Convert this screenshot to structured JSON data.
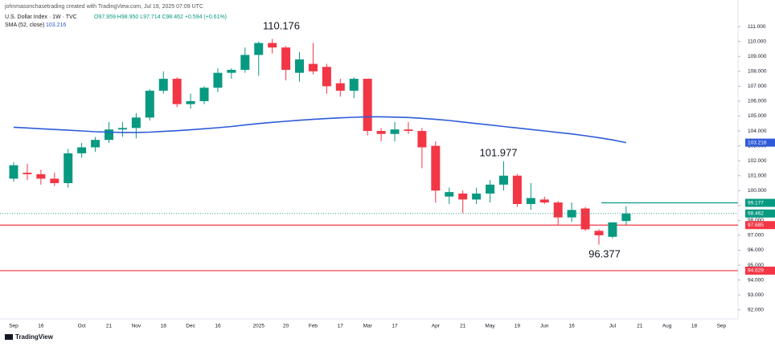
{
  "chart_data": {
    "type": "candlestick",
    "credit": "johnmasonchasetrading created with TradingView.com, Jul 19, 2025 07:09 UTC",
    "title": "U.S. Dollar Index · 1W · TVC",
    "legend_ohlc": "O97.959 H98.950 L97.714 C98.462 +0.594 (+0.61%)",
    "footer": "TradingView",
    "categories": [
      "Sep",
      null,
      "16",
      null,
      null,
      "Oct",
      null,
      "21",
      null,
      "Nov",
      null,
      "18",
      null,
      "Dec",
      null,
      "16",
      null,
      null,
      "2025",
      null,
      "20",
      null,
      "Feb",
      null,
      "17",
      null,
      "Mar",
      null,
      "17",
      null,
      null,
      "Apr",
      null,
      "21",
      null,
      "May",
      null,
      "19",
      null,
      "Jun",
      null,
      "16",
      null,
      null,
      "Jul",
      null,
      "21",
      null,
      "Aug",
      null,
      "18",
      null,
      "Sep"
    ],
    "series": [
      {
        "name": "U.S. Dollar Index · 1W · TVC",
        "up_color": "#089981",
        "down_color": "#f23645",
        "open": [
          100.8,
          101.2,
          101.1,
          100.8,
          100.5,
          102.5,
          102.9,
          103.4,
          104.1,
          104.2,
          104.9,
          106.7,
          107.5,
          105.8,
          106.0,
          106.9,
          107.9,
          108.1,
          109.1,
          109.9,
          109.6,
          107.9,
          108.5,
          108.3,
          107.2,
          106.7,
          107.5,
          104.0,
          103.8,
          104.1,
          104.0,
          103.0,
          99.6,
          99.8,
          99.4,
          99.8,
          100.4,
          101.0,
          99.1,
          99.4,
          99.2,
          98.2,
          98.8,
          97.3,
          96.9,
          97.959,
          null,
          null,
          null,
          null,
          null,
          null,
          null
        ],
        "high": [
          101.9,
          101.8,
          101.4,
          101.2,
          102.8,
          103.2,
          103.6,
          104.6,
          104.6,
          105.2,
          106.8,
          108.0,
          107.6,
          106.5,
          107.0,
          108.2,
          108.2,
          109.6,
          110.0,
          110.176,
          109.7,
          109.3,
          109.9,
          108.5,
          107.5,
          107.6,
          107.5,
          104.2,
          104.6,
          104.6,
          104.2,
          103.3,
          100.2,
          100.0,
          100.2,
          100.7,
          101.977,
          101.1,
          100.5,
          99.6,
          99.3,
          99.2,
          98.9,
          97.4,
          97.8,
          98.95,
          null,
          null,
          null,
          null,
          null,
          null,
          null
        ],
        "low": [
          100.6,
          100.7,
          100.4,
          100.3,
          100.2,
          102.2,
          102.6,
          103.2,
          103.6,
          103.5,
          104.7,
          106.5,
          105.6,
          105.5,
          105.8,
          106.6,
          107.5,
          107.9,
          107.7,
          109.2,
          107.4,
          107.3,
          107.8,
          106.5,
          106.3,
          106.2,
          103.7,
          103.3,
          103.3,
          103.8,
          101.5,
          99.2,
          99.1,
          98.5,
          99.1,
          99.2,
          100.0,
          98.9,
          98.7,
          99.1,
          97.7,
          97.9,
          97.3,
          96.377,
          96.8,
          97.714,
          null,
          null,
          null,
          null,
          null,
          null,
          null
        ],
        "close": [
          101.7,
          101.1,
          100.8,
          100.5,
          102.5,
          102.9,
          103.4,
          104.1,
          104.2,
          104.9,
          106.7,
          107.5,
          105.8,
          106.0,
          106.9,
          107.9,
          108.1,
          109.1,
          109.9,
          109.6,
          108.1,
          108.8,
          108.0,
          107.0,
          106.7,
          107.5,
          104.0,
          103.8,
          104.1,
          104.0,
          102.9,
          100.0,
          99.9,
          99.4,
          99.8,
          100.4,
          101.0,
          99.1,
          99.5,
          99.2,
          98.2,
          98.7,
          97.4,
          97.0,
          97.868,
          98.462,
          null,
          null,
          null,
          null,
          null,
          null,
          null
        ]
      },
      {
        "name": "SMA (52, close)",
        "color": "#2e5bd8",
        "values": [
          104.25,
          104.2,
          104.15,
          104.1,
          104.05,
          104.0,
          103.95,
          103.92,
          103.9,
          103.9,
          103.92,
          103.97,
          104.02,
          104.08,
          104.15,
          104.22,
          104.3,
          104.4,
          104.5,
          104.58,
          104.65,
          104.72,
          104.78,
          104.83,
          104.88,
          104.92,
          104.95,
          104.95,
          104.93,
          104.9,
          104.85,
          104.78,
          104.7,
          104.6,
          104.5,
          104.4,
          104.3,
          104.2,
          104.1,
          104.0,
          103.9,
          103.8,
          103.68,
          103.55,
          103.4,
          103.216,
          null,
          null,
          null,
          null,
          null,
          null,
          null
        ]
      }
    ],
    "levels": [
      {
        "value": 99.177,
        "color": "#089981"
      },
      {
        "value": 97.685,
        "color": "#f23645"
      },
      {
        "value": 94.629,
        "color": "#f23645"
      }
    ],
    "annotations": [
      "110.176",
      "101.977",
      "96.377"
    ],
    "ylim": [
      91.5,
      111.6
    ],
    "yticks": [
      {
        "value": 92,
        "label": "92.000"
      },
      {
        "value": 93,
        "label": "93.000"
      },
      {
        "value": 94,
        "label": "94.000"
      },
      {
        "value": 95,
        "label": "95.000"
      },
      {
        "value": 96,
        "label": "96.000"
      },
      {
        "value": 97,
        "label": "97.000"
      },
      {
        "value": 98,
        "label": "98.000"
      },
      {
        "value": 99,
        "label": "99.000"
      },
      {
        "value": 100,
        "label": "100.000"
      },
      {
        "value": 101,
        "label": "101.000"
      },
      {
        "value": 102,
        "label": "102.000"
      },
      {
        "value": 103,
        "label": "103.000"
      },
      {
        "value": 104,
        "label": "104.000"
      },
      {
        "value": 105,
        "label": "105.000"
      },
      {
        "value": 106,
        "label": "106.000"
      },
      {
        "value": 107,
        "label": "107.000"
      },
      {
        "value": 108,
        "label": "108.000"
      },
      {
        "value": 109,
        "label": "109.000"
      },
      {
        "value": 110,
        "label": "110.000"
      },
      {
        "value": 111,
        "label": "111.000"
      }
    ],
    "grid": false
  }
}
